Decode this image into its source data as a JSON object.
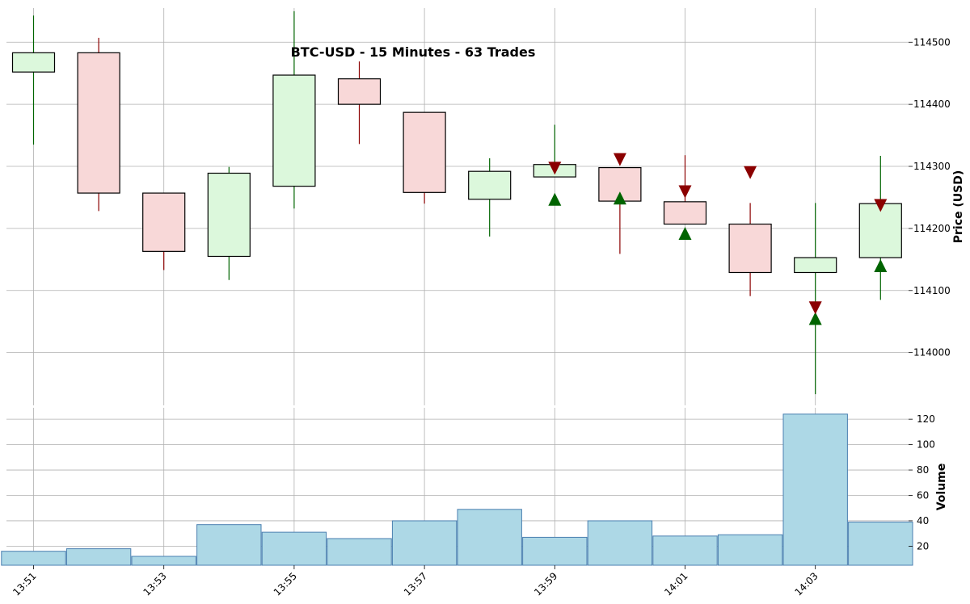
{
  "chart_data": [
    {
      "type": "candlestick",
      "title": "BTC-USD - 15 Minutes - 63 Trades",
      "ylabel": "Price (USD)",
      "ylim": [
        113915,
        114555
      ],
      "y_ticks": [
        114000,
        114100,
        114200,
        114300,
        114400,
        114500
      ],
      "x": [
        "13:51",
        "13:52",
        "13:53",
        "13:54",
        "13:55",
        "13:56",
        "13:57",
        "13:58",
        "13:59",
        "14:00",
        "14:01",
        "14:02",
        "14:03",
        "14:04"
      ],
      "x_tick_labels": [
        "13:51",
        "13:53",
        "13:55",
        "13:57",
        "13:59",
        "14:01",
        "14:03"
      ],
      "open": [
        114452,
        114483,
        114257,
        114155,
        114268,
        114441,
        114387,
        114247,
        114283,
        114298,
        114243,
        114207,
        114129,
        114153
      ],
      "high": [
        114543,
        114507,
        114257,
        114299,
        114550,
        114469,
        114387,
        114313,
        114367,
        114298,
        114318,
        114241,
        114241,
        114317
      ],
      "low": [
        114335,
        114228,
        114133,
        114117,
        114232,
        114336,
        114240,
        114187,
        114283,
        114159,
        114207,
        114091,
        113933,
        114085
      ],
      "close": [
        114483,
        114257,
        114163,
        114289,
        114447,
        114400,
        114258,
        114292,
        114303,
        114244,
        114207,
        114129,
        114153,
        114240
      ],
      "colors": {
        "up_fill": "#dcf8dc",
        "down_fill": "#f8d8d8",
        "up_wick": "#006400",
        "down_wick": "#8b0000",
        "buy_marker": "#006400",
        "sell_marker": "#8b0000"
      },
      "buy_markers": [
        {
          "x": "13:59",
          "y": 114247
        },
        {
          "x": "14:00",
          "y": 114249
        },
        {
          "x": "14:01",
          "y": 114192
        },
        {
          "x": "14:03",
          "y": 114055
        },
        {
          "x": "14:04",
          "y": 114140
        }
      ],
      "sell_markers": [
        {
          "x": "13:59",
          "y": 114297
        },
        {
          "x": "14:00",
          "y": 114311
        },
        {
          "x": "14:01",
          "y": 114259
        },
        {
          "x": "14:02",
          "y": 114290
        },
        {
          "x": "14:03",
          "y": 114072
        },
        {
          "x": "14:04",
          "y": 114237
        }
      ],
      "grid": true
    },
    {
      "type": "bar",
      "ylabel": "Volume",
      "ylim": [
        5,
        129
      ],
      "y_ticks": [
        20,
        40,
        60,
        80,
        100,
        120
      ],
      "categories": [
        "13:51",
        "13:52",
        "13:53",
        "13:54",
        "13:55",
        "13:56",
        "13:57",
        "13:58",
        "13:59",
        "14:00",
        "14:01",
        "14:02",
        "14:03",
        "14:04"
      ],
      "values": [
        16,
        18,
        12,
        37,
        31,
        26,
        40,
        49,
        27,
        40,
        28,
        29,
        124,
        39
      ],
      "colors": {
        "bar_fill": "#add8e6",
        "bar_edge": "#4a7fb0"
      },
      "grid": true
    }
  ]
}
